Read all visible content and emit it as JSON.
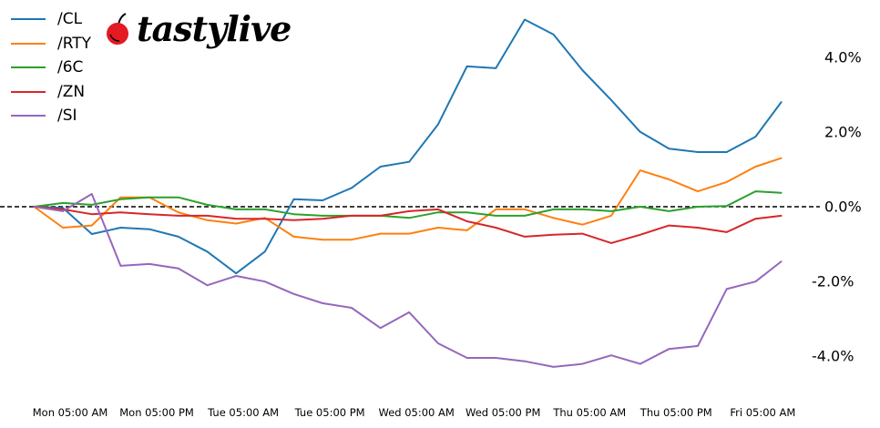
{
  "logo": {
    "text": "tastylive",
    "icon": "cherry-icon",
    "color": "#e31b23"
  },
  "chart_data": {
    "type": "line",
    "title": "",
    "xlabel": "",
    "ylabel": "",
    "ylim": [
      -5.2,
      5.4
    ],
    "grid": false,
    "legend_placement": "top-left",
    "zero_line": {
      "value": 0,
      "style": "dashed",
      "color": "#000000"
    },
    "y_ticks": [
      {
        "value": 4,
        "label": "4.0%"
      },
      {
        "value": 2,
        "label": "2.0%"
      },
      {
        "value": 0,
        "label": "0.0%"
      },
      {
        "value": -2,
        "label": "-2.0%"
      },
      {
        "value": -4,
        "label": "-4.0%"
      }
    ],
    "x_ticks": [
      "Mon 05:00 AM",
      "Mon 05:00 PM",
      "Tue 05:00 AM",
      "Tue 05:00 PM",
      "Wed 05:00 AM",
      "Wed 05:00 PM",
      "Thu 05:00 AM",
      "Thu 05:00 PM",
      "Fri 05:00 AM"
    ],
    "x": [
      "Mon 12:00 AM",
      "Mon 04:00 AM",
      "Mon 08:00 AM",
      "Mon 12:00 PM",
      "Mon 04:00 PM",
      "Mon 08:00 PM",
      "Tue 12:00 AM",
      "Tue 04:00 AM",
      "Tue 08:00 AM",
      "Tue 12:00 PM",
      "Tue 04:00 PM",
      "Tue 08:00 PM",
      "Wed 12:00 AM",
      "Wed 04:00 AM",
      "Wed 08:00 AM",
      "Wed 12:00 PM",
      "Wed 04:00 PM",
      "Wed 08:00 PM",
      "Thu 12:00 AM",
      "Thu 04:00 AM",
      "Thu 08:00 AM",
      "Thu 12:00 PM",
      "Thu 04:00 PM",
      "Thu 08:00 PM",
      "Fri 12:00 AM",
      "Fri 04:00 AM",
      "Fri 07:35 AM"
    ],
    "series": [
      {
        "name": "/CL",
        "color": "#1f77b4",
        "values": [
          0,
          -0.03,
          -0.73,
          -0.56,
          -0.6,
          -0.8,
          -1.2,
          -1.78,
          -1.2,
          0.2,
          0.17,
          0.5,
          1.07,
          1.2,
          2.2,
          3.75,
          3.7,
          5.0,
          4.6,
          3.65,
          2.85,
          2.0,
          1.55,
          1.46,
          1.46,
          1.87,
          2.8
        ]
      },
      {
        "name": "/RTY",
        "color": "#ff7f0e",
        "values": [
          0,
          -0.56,
          -0.5,
          0.25,
          0.25,
          -0.15,
          -0.36,
          -0.45,
          -0.3,
          -0.8,
          -0.88,
          -0.88,
          -0.72,
          -0.72,
          -0.56,
          -0.63,
          -0.07,
          -0.07,
          -0.3,
          -0.48,
          -0.24,
          0.97,
          0.73,
          0.41,
          0.66,
          1.07,
          1.3
        ]
      },
      {
        "name": "/6C",
        "color": "#2ca02c",
        "values": [
          0,
          0.1,
          0.05,
          0.2,
          0.25,
          0.25,
          0.05,
          -0.07,
          -0.07,
          -0.2,
          -0.24,
          -0.24,
          -0.24,
          -0.3,
          -0.15,
          -0.15,
          -0.24,
          -0.24,
          -0.07,
          -0.07,
          -0.12,
          0,
          -0.12,
          0,
          0.02,
          0.41,
          0.37
        ]
      },
      {
        "name": "/ZN",
        "color": "#d62728",
        "values": [
          0,
          -0.07,
          -0.2,
          -0.15,
          -0.2,
          -0.24,
          -0.24,
          -0.32,
          -0.32,
          -0.36,
          -0.32,
          -0.24,
          -0.24,
          -0.12,
          -0.07,
          -0.39,
          -0.56,
          -0.8,
          -0.75,
          -0.72,
          -0.97,
          -0.75,
          -0.5,
          -0.56,
          -0.68,
          -0.32,
          -0.24
        ]
      },
      {
        "name": "/SI",
        "color": "#9467bd",
        "values": [
          0,
          -0.12,
          0.34,
          -1.58,
          -1.53,
          -1.65,
          -2.1,
          -1.85,
          -2.0,
          -2.33,
          -2.58,
          -2.7,
          -3.24,
          -2.82,
          -3.65,
          -4.04,
          -4.04,
          -4.13,
          -4.28,
          -4.2,
          -3.97,
          -4.2,
          -3.8,
          -3.72,
          -2.2,
          -2.0,
          -1.46
        ]
      }
    ]
  }
}
